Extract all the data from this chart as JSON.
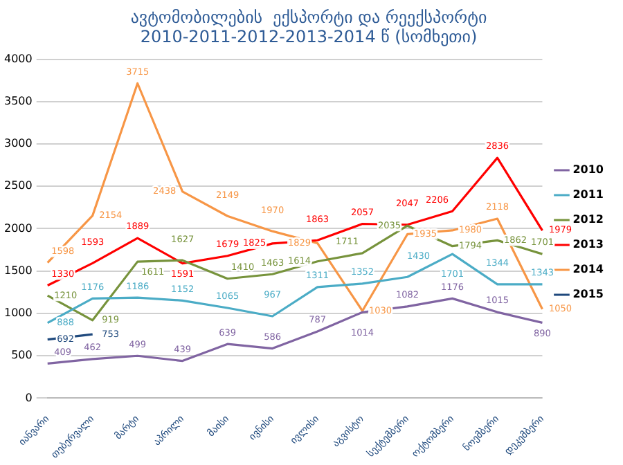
{
  "chart_data": {
    "type": "line",
    "title": "ავტომობილების  ექსპორტი და რეექსპორტი\n2010-2011-2012-2013-2014 წ (სომხეთი)",
    "categories": [
      "იანვარი",
      "თებერვალი",
      "მარტი",
      "აპრილი",
      "მაისი",
      "ივნისი",
      "ივლისი",
      "აგვისტო",
      "სექტემბერი",
      "ოქტომბერი",
      "ნოემბერი",
      "დეკემბერი"
    ],
    "series": [
      {
        "name": "2010",
        "color": "#8064a2",
        "values": [
          409,
          462,
          499,
          439,
          639,
          586,
          787,
          1014,
          1082,
          1176,
          1015,
          890
        ]
      },
      {
        "name": "2011",
        "color": "#4bacc6",
        "values": [
          888,
          1176,
          1186,
          1152,
          1065,
          967,
          1311,
          1352,
          1430,
          1701,
          1344,
          1343
        ]
      },
      {
        "name": "2012",
        "color": "#77933c",
        "values": [
          1210,
          919,
          1611,
          1627,
          1410,
          1463,
          1614,
          1711,
          2035,
          1794,
          1862,
          1701
        ]
      },
      {
        "name": "2013",
        "color": "#ff0000",
        "values": [
          1330,
          1593,
          1889,
          1591,
          1679,
          1825,
          1863,
          2057,
          2047,
          2206,
          2836,
          1979
        ]
      },
      {
        "name": "2014",
        "color": "#f79646",
        "values": [
          1598,
          2154,
          3715,
          2438,
          2149,
          1970,
          1829,
          1030,
          1935,
          1980,
          2118,
          1050
        ]
      },
      {
        "name": "2015",
        "color": "#1f497d",
        "values": [
          692,
          753,
          null,
          null,
          null,
          null,
          null,
          null,
          null,
          null,
          null,
          null
        ]
      }
    ],
    "ylim": [
      0,
      4000
    ],
    "yticks": [
      0,
      500,
      1000,
      1500,
      2000,
      2500,
      3000,
      3500,
      4000
    ],
    "grid": "y",
    "legend": "right",
    "data_labels": true
  }
}
